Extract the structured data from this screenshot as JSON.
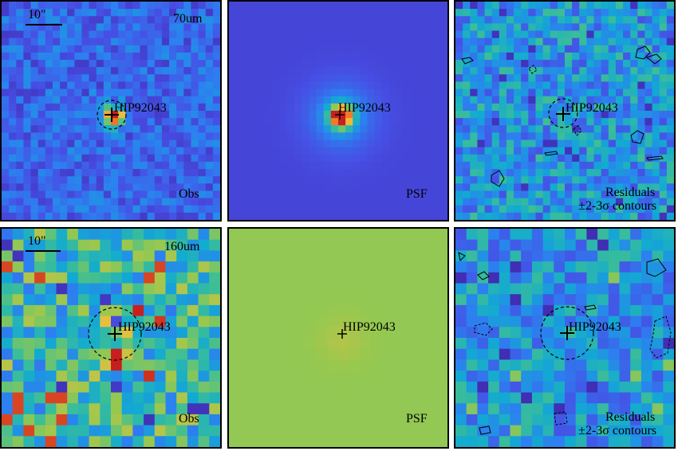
{
  "panels": {
    "r1c1": {
      "band": "70um",
      "type": "Obs",
      "target": "HIP92043",
      "scale": "10\""
    },
    "r1c2": {
      "type": "PSF",
      "target": "HIP92043"
    },
    "r1c3": {
      "type": "Residuals",
      "subtitle": "±2-3σ contours",
      "target": "HIP92043"
    },
    "r2c1": {
      "band": "160um",
      "type": "Obs",
      "target": "HIP92043",
      "scale": "10\""
    },
    "r2c2": {
      "type": "PSF",
      "target": "HIP92043"
    },
    "r2c3": {
      "type": "Residuals",
      "subtitle": "±2-3σ contours",
      "target": "HIP92043"
    }
  },
  "colors": {
    "frame": "#000000",
    "low": "#3b2a88",
    "mid": "#2aa0c8",
    "high": "#e8d04a",
    "peak": "#c0281e",
    "psf160_bg": "#98c05a"
  }
}
